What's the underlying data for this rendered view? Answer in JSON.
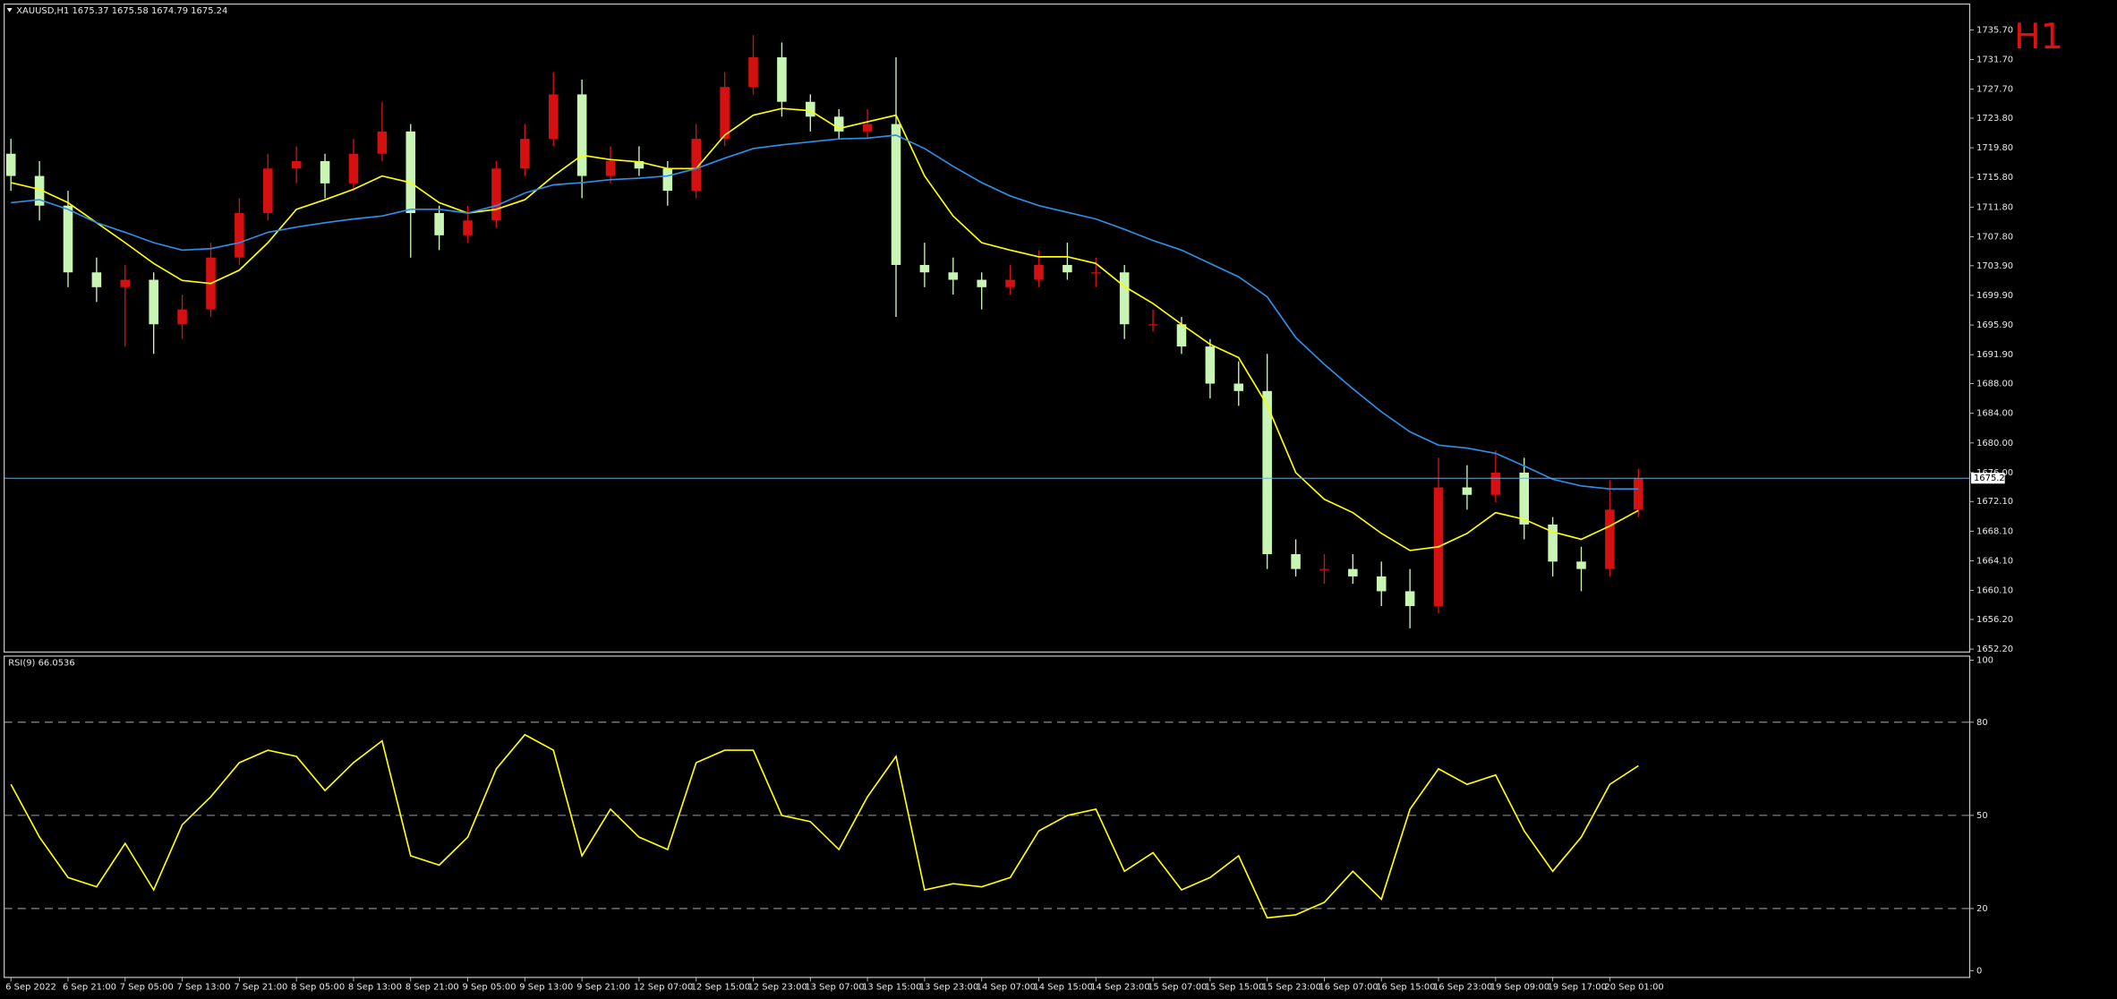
{
  "chart_data": [
    {
      "type": "candlestick",
      "title": "XAUUSD,H1  1675.37 1675.58 1674.79 1675.24",
      "annotation": "H1",
      "categories": [
        "6 Sep 2022",
        null,
        "6 Sep 21:00",
        null,
        "7 Sep 05:00",
        null,
        "7 Sep 13:00",
        null,
        "7 Sep 21:00",
        null,
        "8 Sep 05:00",
        null,
        "8 Sep 13:00",
        null,
        "8 Sep 21:00",
        null,
        "9 Sep 05:00",
        null,
        "9 Sep 13:00",
        null,
        "9 Sep 21:00",
        null,
        "12 Sep 07:00",
        null,
        "12 Sep 15:00",
        null,
        "12 Sep 23:00",
        null,
        "13 Sep 07:00",
        null,
        "13 Sep 15:00",
        null,
        "13 Sep 23:00",
        null,
        "14 Sep 07:00",
        null,
        "14 Sep 15:00",
        null,
        "14 Sep 23:00",
        null,
        "15 Sep 07:00",
        null,
        "15 Sep 15:00",
        null,
        "15 Sep 23:00",
        null,
        "16 Sep 07:00",
        null,
        "16 Sep 15:00",
        null,
        "16 Sep 23:00",
        null,
        "19 Sep 09:00",
        null,
        "19 Sep 17:00",
        null,
        "20 Sep 01:00",
        null
      ],
      "open": [
        1719,
        1716,
        1712,
        1703,
        1701,
        1702,
        1696,
        1698,
        1705,
        1711,
        1717,
        1718,
        1715,
        1719,
        1722,
        1711,
        1708,
        1710,
        1717,
        1721,
        1727,
        1716,
        1718,
        1717,
        1714,
        1721,
        1728,
        1732,
        1726,
        1724,
        1722,
        1723,
        1704,
        1703,
        1702,
        1701,
        1702,
        1704,
        1703,
        1703,
        1696,
        1696,
        1693,
        1688,
        1687,
        1665,
        1663,
        1663,
        1662,
        1660,
        1658,
        1674,
        1673,
        1676,
        1669,
        1664,
        1663,
        1671
      ],
      "high": [
        1721,
        1718,
        1714,
        1705,
        1704,
        1703,
        1700,
        1707,
        1713,
        1719,
        1720,
        1719,
        1721,
        1726,
        1723,
        1712,
        1712,
        1718,
        1723,
        1730,
        1729,
        1720,
        1720,
        1718,
        1723,
        1730,
        1735,
        1734,
        1727,
        1725,
        1725,
        1732,
        1707,
        1705,
        1703,
        1704,
        1706,
        1707,
        1705,
        1704,
        1698,
        1697,
        1694,
        1691,
        1692,
        1667,
        1665,
        1665,
        1664,
        1663,
        1678,
        1677,
        1679,
        1678,
        1670,
        1666,
        1675,
        1676.5
      ],
      "low": [
        1714,
        1710,
        1701,
        1699,
        1693,
        1692,
        1694,
        1697,
        1704,
        1710,
        1715,
        1713,
        1714,
        1718,
        1705,
        1706,
        1707,
        1709,
        1716,
        1720,
        1713,
        1715,
        1716,
        1712,
        1713,
        1720,
        1727,
        1724,
        1722,
        1721,
        1721,
        1697,
        1701,
        1700,
        1698,
        1700,
        1701,
        1702,
        1701,
        1694,
        1695,
        1692,
        1686,
        1685,
        1663,
        1662,
        1661,
        1661,
        1658,
        1655,
        1657,
        1671,
        1672,
        1667,
        1662,
        1660,
        1662,
        1670
      ],
      "close": [
        1716,
        1712,
        1703,
        1701,
        1702,
        1696,
        1698,
        1705,
        1711,
        1717,
        1718,
        1715,
        1719,
        1722,
        1711,
        1708,
        1710,
        1717,
        1721,
        1727,
        1716,
        1718,
        1717,
        1714,
        1721,
        1728,
        1732,
        1726,
        1724,
        1722,
        1723,
        1704,
        1703,
        1702,
        1701,
        1702,
        1704,
        1703,
        1703,
        1696,
        1696,
        1693,
        1688,
        1687,
        1665,
        1663,
        1663,
        1662,
        1660,
        1658,
        1674,
        1673,
        1676,
        1669,
        1664,
        1663,
        1671,
        1675.24
      ],
      "up_color": "#d41010",
      "down_color": "#c8f5b4",
      "overlays": [
        {
          "color": "#ffff00",
          "values": [
            1715.1,
            1714.2,
            1712.4,
            1709.7,
            1707,
            1704.2,
            1701.9,
            1701.5,
            1703.3,
            1707,
            1711.5,
            1712.8,
            1714.2,
            1716,
            1715.1,
            1712.4,
            1711,
            1711.5,
            1712.8,
            1716,
            1718.8,
            1718.2,
            1717.9,
            1717,
            1717,
            1721.5,
            1724.2,
            1725.1,
            1724.8,
            1722.4,
            1723.3,
            1724.2,
            1716,
            1710.6,
            1707,
            1706,
            1705.1,
            1705.1,
            1704.2,
            1701.1,
            1698.8,
            1696,
            1693.3,
            1691.5,
            1685.1,
            1676,
            1672.4,
            1670.6,
            1667.8,
            1665.5,
            1666,
            1667.8,
            1670.6,
            1669.7,
            1668,
            1667,
            1668.8,
            1670.9
          ]
        },
        {
          "color": "#2e8fe8",
          "values": [
            1712.4,
            1712.8,
            1711.5,
            1709.7,
            1708.4,
            1707,
            1706,
            1706.2,
            1707,
            1708.4,
            1709.1,
            1709.7,
            1710.2,
            1710.6,
            1711.5,
            1711.5,
            1711,
            1712,
            1713.7,
            1714.8,
            1715.1,
            1715.5,
            1715.7,
            1716,
            1717,
            1718.4,
            1719.7,
            1720.2,
            1720.6,
            1721,
            1721.1,
            1721.5,
            1719.7,
            1717.3,
            1715.1,
            1713.3,
            1712,
            1711.1,
            1710.2,
            1708.8,
            1707.3,
            1706,
            1704.2,
            1702.4,
            1699.7,
            1694.2,
            1690.6,
            1687.3,
            1684.2,
            1681.5,
            1679.7,
            1679.3,
            1678.6,
            1676.9,
            1675.1,
            1674.2,
            1673.8,
            1673.8
          ]
        }
      ],
      "last_price": {
        "value": 1675.24,
        "label": "1675.24"
      },
      "ylim": [
        1651.8,
        1739.0
      ],
      "yticks": [
        {
          "value": 1735.7,
          "label": "1735.70"
        },
        {
          "value": 1731.7,
          "label": "1731.70"
        },
        {
          "value": 1727.7,
          "label": "1727.70"
        },
        {
          "value": 1723.8,
          "label": "1723.80"
        },
        {
          "value": 1719.8,
          "label": "1719.80"
        },
        {
          "value": 1715.8,
          "label": "1715.80"
        },
        {
          "value": 1711.8,
          "label": "1711.80"
        },
        {
          "value": 1707.8,
          "label": "1707.80"
        },
        {
          "value": 1703.9,
          "label": "1703.90"
        },
        {
          "value": 1699.9,
          "label": "1699.90"
        },
        {
          "value": 1695.9,
          "label": "1695.90"
        },
        {
          "value": 1691.9,
          "label": "1691.90"
        },
        {
          "value": 1688,
          "label": "1688.00"
        },
        {
          "value": 1684,
          "label": "1684.00"
        },
        {
          "value": 1680,
          "label": "1680.00"
        },
        {
          "value": 1676,
          "label": "1676.00"
        },
        {
          "value": 1672.1,
          "label": "1672.10"
        },
        {
          "value": 1668.1,
          "label": "1668.10"
        },
        {
          "value": 1664.1,
          "label": "1664.10"
        },
        {
          "value": 1660.1,
          "label": "1660.10"
        },
        {
          "value": 1656.2,
          "label": "1656.20"
        },
        {
          "value": 1652.2,
          "label": "1652.20"
        }
      ]
    },
    {
      "type": "line",
      "title": "RSI(9) 66.0536",
      "color": "#ffff00",
      "values": [
        60,
        43,
        30,
        27,
        41,
        26,
        47,
        56,
        67,
        71,
        69,
        58,
        67,
        74,
        37,
        34,
        43,
        65,
        76,
        71,
        37,
        52,
        43,
        39,
        67,
        71,
        71,
        50,
        48,
        39,
        56,
        69,
        26,
        28,
        27,
        30,
        45,
        50,
        52,
        32,
        38,
        26,
        30,
        37,
        17,
        18,
        22,
        32,
        23,
        52,
        65,
        60,
        63,
        45,
        32,
        43,
        60,
        66
      ],
      "ylim": [
        0,
        100
      ],
      "yticks": [
        100,
        80,
        50,
        20,
        0
      ],
      "levels": [
        80,
        50,
        20
      ]
    }
  ]
}
